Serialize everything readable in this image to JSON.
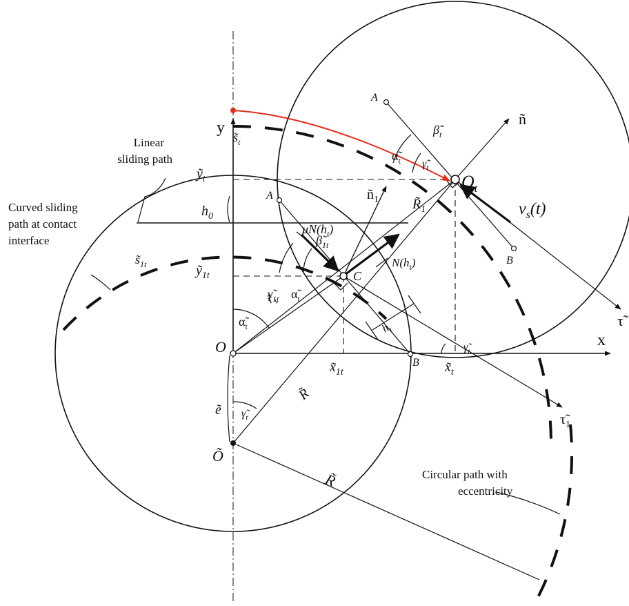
{
  "colors": {
    "ink": "#111111",
    "accent": "#e0301e"
  },
  "axes": {
    "y": "y",
    "x": "x"
  },
  "points": {
    "O": "O",
    "O_tilde": "Õ",
    "O_t": "O",
    "O_t_sub": "t",
    "C": "C",
    "A_top": "A",
    "A_mid": "A",
    "B_right": "B",
    "B_mid": "B"
  },
  "labels": {
    "n": "ñ",
    "n1": "ñ",
    "n1_sub": "1",
    "tau": "τ̃",
    "tau1": "τ̃",
    "tau1_sub": "1",
    "R1": "R̃",
    "R1_sub": "1",
    "R": "R̃",
    "R_big": "R̃",
    "r": "r̃",
    "r_sub": "t",
    "e": "ẽ",
    "h0": "h",
    "h0_sub": "0",
    "h1": "h",
    "h1_sub": "t",
    "muN": "μN(h",
    "muN_end": ")",
    "muN_sub": "t",
    "N": "N(h",
    "N_end": ")",
    "N_sub": "t",
    "vs": "v",
    "vs_sub": "s",
    "vs_end": "(t)",
    "s_t": "s̃",
    "s_t_sub": "t",
    "s_1t": "s̃",
    "s_1t_sub": "1t",
    "y_t": "ỹ",
    "y_t_sub": "t",
    "y_1t": "ỹ",
    "y_1t_sub": "1t",
    "x_1t": "x̃",
    "x_1t_sub": "1t",
    "x_t": "x̃",
    "x_t_sub": "t",
    "alpha_top": "α̃",
    "alpha_top_sub": "t",
    "alpha_mid": "α̃",
    "alpha_mid_sub": "t",
    "alpha_low": "α̃",
    "alpha_low_sub": "t",
    "beta_top": "β̃",
    "beta_top_sub": "t",
    "beta_mid": "β̃",
    "beta_mid_sub": "1t",
    "gamma_top": "γ̃",
    "gamma_top_sub": "t",
    "gamma_mid": "γ̃",
    "gamma_mid_sub": "1t",
    "gamma_x": "γ̃",
    "gamma_x_sub": "t",
    "gamma_low": "γ̃",
    "gamma_low_sub": "t"
  },
  "notes": {
    "linear": [
      "Linear",
      "sliding path"
    ],
    "curved": [
      "Curved sliding",
      "path at contact",
      "interface"
    ],
    "circular": [
      "Circular path with",
      "eccentricity"
    ]
  }
}
